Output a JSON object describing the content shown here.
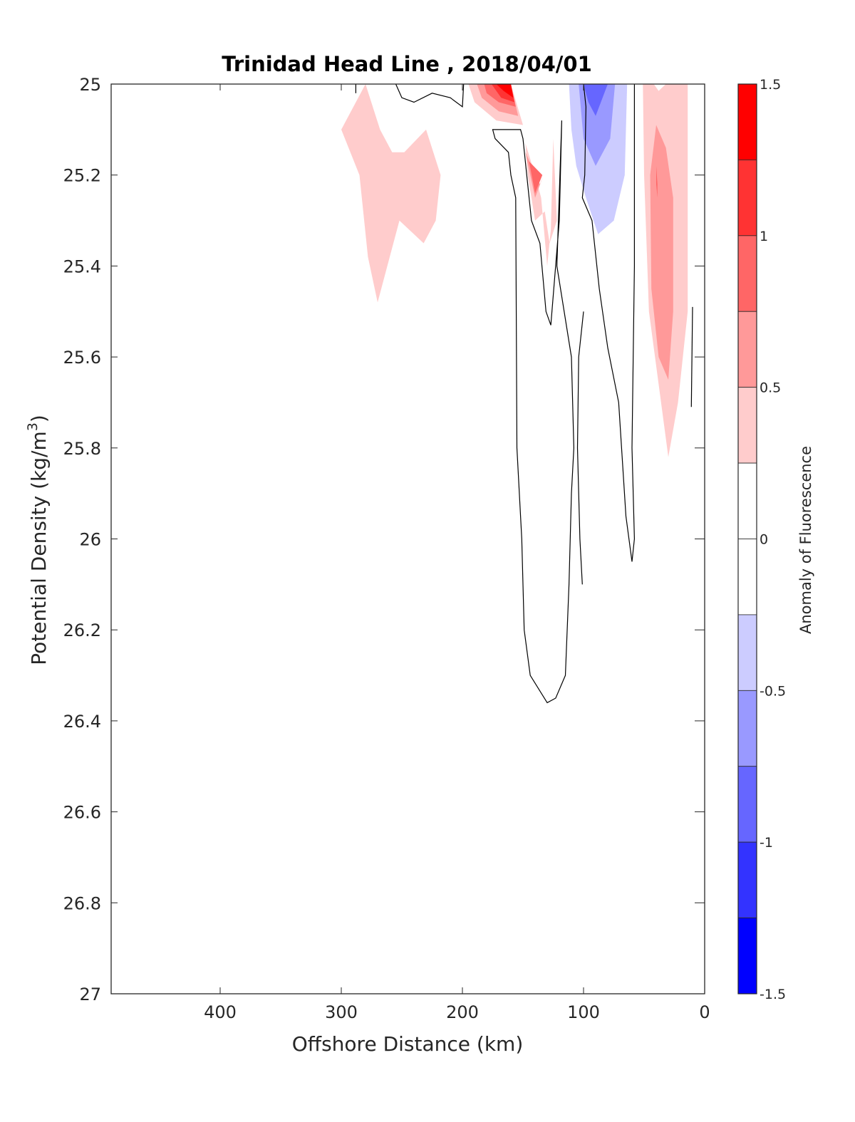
{
  "chart_data": {
    "type": "heatmap",
    "subtype": "filled-contour",
    "title": "Trinidad Head Line , 2018/04/01",
    "xlabel": "Offshore Distance (km)",
    "ylabel": "Potential Density (kg/m",
    "ylabel_superscript": "3",
    "ylabel_suffix": ")",
    "xlim": [
      490,
      0
    ],
    "x_reversed": true,
    "ylim": [
      25,
      27
    ],
    "y_reversed": true,
    "xticks": [
      400,
      300,
      200,
      100,
      0
    ],
    "xtick_labels": [
      "400",
      "300",
      "200",
      "100",
      "0"
    ],
    "yticks": [
      25,
      25.2,
      25.4,
      25.6,
      25.8,
      26,
      26.2,
      26.4,
      26.6,
      26.8,
      27
    ],
    "ytick_labels": [
      "25",
      "25.2",
      "25.4",
      "25.6",
      "25.8",
      "26",
      "26.2",
      "26.4",
      "26.6",
      "26.8",
      "27"
    ],
    "grid": false,
    "colorbar": {
      "label": "Anomaly of Fluorescence",
      "placement": "right",
      "range": [
        -1.5,
        1.5
      ],
      "ticks": [
        1.5,
        1,
        0.5,
        0,
        -0.5,
        -1,
        -1.5
      ],
      "tick_labels": [
        "1.5",
        "1",
        "0.5",
        "0",
        "-0.5",
        "-1",
        "-1.5"
      ],
      "levels": [
        {
          "from": 1.25,
          "to": 1.5,
          "color": "#ff0000"
        },
        {
          "from": 0.75,
          "to": 1.25,
          "color": "#ff3333",
          "split_at": 1.0,
          "colors": [
            "#ff3333",
            "#ff6666"
          ]
        },
        {
          "from": 0.5,
          "to": 0.75,
          "color": "#ff9999"
        },
        {
          "from": 0.25,
          "to": 0.5,
          "color": "#ffcccc"
        },
        {
          "from": -0.25,
          "to": 0.25,
          "color": "#ffffff"
        },
        {
          "from": -0.5,
          "to": -0.25,
          "color": "#ccccff"
        },
        {
          "from": -0.75,
          "to": -0.5,
          "color": "#9999ff"
        },
        {
          "from": -1.0,
          "to": -0.75,
          "color": "#6666ff"
        },
        {
          "from": -1.25,
          "to": -1.0,
          "color": "#3333ff"
        },
        {
          "from": -1.5,
          "to": -1.25,
          "color": "#0000ff"
        }
      ],
      "bands": [
        {
          "color": "#ff0000",
          "from": 1.25,
          "to": 1.5
        },
        {
          "color": "#ff3333",
          "from": 1.0,
          "to": 1.25
        },
        {
          "color": "#ff6666",
          "from": 0.75,
          "to": 1.0
        },
        {
          "color": "#ff9999",
          "from": 0.5,
          "to": 0.75
        },
        {
          "color": "#ffcccc",
          "from": 0.25,
          "to": 0.5
        },
        {
          "color": "#ffffff",
          "from": 0.0,
          "to": 0.25
        },
        {
          "color": "#ffffff",
          "from": -0.25,
          "to": 0.0
        },
        {
          "color": "#ccccff",
          "from": -0.5,
          "to": -0.25
        },
        {
          "color": "#9999ff",
          "from": -0.75,
          "to": -0.5
        },
        {
          "color": "#6666ff",
          "from": -1.0,
          "to": -0.75
        },
        {
          "color": "#3333ff",
          "from": -1.25,
          "to": -1.0
        },
        {
          "color": "#0000ff",
          "from": -1.5,
          "to": -1.25
        }
      ]
    },
    "filled_regions": [
      {
        "name": "anomaly-patch-offshore-pos",
        "level": 0.25,
        "color": "#ffcccc",
        "points": [
          [
            280,
            25
          ],
          [
            268,
            25.1
          ],
          [
            258,
            25.15
          ],
          [
            248,
            25.15
          ],
          [
            230,
            25.1
          ],
          [
            218,
            25.2
          ],
          [
            222,
            25.3
          ],
          [
            232,
            25.35
          ],
          [
            252,
            25.3
          ],
          [
            262,
            25.4
          ],
          [
            270,
            25.48
          ],
          [
            278,
            25.38
          ],
          [
            285,
            25.2
          ],
          [
            300,
            25.1
          ]
        ]
      },
      {
        "name": "anomaly-patch-200km-pos-1",
        "level": 0.25,
        "color": "#ffcccc",
        "points": [
          [
            195,
            25
          ],
          [
            160,
            25
          ],
          [
            150,
            25.09
          ],
          [
            172,
            25.08
          ],
          [
            190,
            25.04
          ]
        ]
      },
      {
        "name": "anomaly-patch-200km-pos-2",
        "level": 0.5,
        "color": "#ff9999",
        "points": [
          [
            188,
            25
          ],
          [
            160,
            25
          ],
          [
            154,
            25.07
          ],
          [
            170,
            25.06
          ],
          [
            184,
            25.03
          ]
        ]
      },
      {
        "name": "anomaly-patch-200km-pos-3",
        "level": 0.75,
        "color": "#ff6666",
        "points": [
          [
            182,
            25
          ],
          [
            160,
            25
          ],
          [
            156,
            25.05
          ],
          [
            170,
            25.04
          ],
          [
            180,
            25.02
          ]
        ]
      },
      {
        "name": "anomaly-patch-200km-pos-4",
        "level": 1.0,
        "color": "#ff3333",
        "points": [
          [
            176,
            25
          ],
          [
            160,
            25
          ],
          [
            157,
            25.04
          ],
          [
            168,
            25.03
          ]
        ]
      },
      {
        "name": "anomaly-patch-200km-pos-5",
        "level": 1.25,
        "color": "#ff0000",
        "points": [
          [
            172,
            25
          ],
          [
            160,
            25
          ],
          [
            158,
            25.03
          ],
          [
            166,
            25.015
          ]
        ]
      },
      {
        "name": "anomaly-patch-140km-pos-1",
        "level": 0.25,
        "color": "#ffcccc",
        "points": [
          [
            148,
            25.13
          ],
          [
            140,
            25.2
          ],
          [
            135,
            25.25
          ],
          [
            130,
            25.4
          ],
          [
            127,
            25.32
          ],
          [
            125,
            25.12
          ],
          [
            122,
            25.3
          ],
          [
            128,
            25.35
          ],
          [
            132,
            25.28
          ],
          [
            140,
            25.3
          ],
          [
            146,
            25.2
          ]
        ]
      },
      {
        "name": "anomaly-patch-140km-pos-2",
        "level": 0.5,
        "color": "#ff9999",
        "points": [
          [
            148,
            25.15
          ],
          [
            140,
            25.25
          ],
          [
            133,
            25.2
          ],
          [
            136,
            25.22
          ]
        ]
      },
      {
        "name": "anomaly-patch-140km-pos-3",
        "level": 0.75,
        "color": "#ff6666",
        "points": [
          [
            145,
            25.17
          ],
          [
            140,
            25.24
          ],
          [
            134,
            25.2
          ]
        ]
      },
      {
        "name": "anomaly-patch-100km-neg-1",
        "level": -0.25,
        "color": "#ccccff",
        "points": [
          [
            112,
            25
          ],
          [
            64,
            25
          ],
          [
            66,
            25.2
          ],
          [
            75,
            25.3
          ],
          [
            88,
            25.33
          ],
          [
            98,
            25.25
          ],
          [
            106,
            25.18
          ],
          [
            110,
            25.1
          ]
        ]
      },
      {
        "name": "anomaly-patch-100km-neg-2",
        "level": -0.5,
        "color": "#9999ff",
        "points": [
          [
            104,
            25
          ],
          [
            74,
            25
          ],
          [
            78,
            25.12
          ],
          [
            90,
            25.18
          ],
          [
            100,
            25.12
          ]
        ]
      },
      {
        "name": "anomaly-patch-100km-neg-3",
        "level": -0.75,
        "color": "#6666ff",
        "points": [
          [
            100,
            25
          ],
          [
            80,
            25
          ],
          [
            90,
            25.07
          ],
          [
            96,
            25.04
          ]
        ]
      },
      {
        "name": "anomaly-patch-coastal-pos-1",
        "level": 0.25,
        "color": "#ffcccc",
        "points": [
          [
            51,
            25
          ],
          [
            42,
            25
          ],
          [
            38,
            25.015
          ],
          [
            32,
            25
          ],
          [
            14,
            25
          ],
          [
            14,
            25.5
          ],
          [
            22,
            25.7
          ],
          [
            30,
            25.82
          ],
          [
            36,
            25.7
          ],
          [
            46,
            25.5
          ],
          [
            50,
            25.2
          ]
        ]
      },
      {
        "name": "anomaly-patch-coastal-pos-2",
        "level": 0.5,
        "color": "#ff9999",
        "points": [
          [
            40,
            25.09
          ],
          [
            45,
            25.2
          ],
          [
            44,
            25.45
          ],
          [
            38,
            25.6
          ],
          [
            30,
            25.65
          ],
          [
            26,
            25.5
          ],
          [
            26,
            25.25
          ],
          [
            32,
            25.14
          ]
        ]
      },
      {
        "name": "anomaly-patch-coastal-pos-3",
        "level": 0.75,
        "color": "#ff6666",
        "points": [
          [
            40,
            25.18
          ],
          [
            39,
            25.22
          ],
          [
            39,
            25.25
          ],
          [
            40,
            25.22
          ]
        ]
      }
    ],
    "zero_contours": [
      {
        "name": "zero-contour-top-wavy",
        "closed": false,
        "points": [
          [
            255,
            25
          ],
          [
            250,
            25.03
          ],
          [
            240,
            25.04
          ],
          [
            225,
            25.02
          ],
          [
            210,
            25.03
          ],
          [
            200,
            25.05
          ],
          [
            199,
            25.0
          ]
        ]
      },
      {
        "name": "zero-contour-top-small",
        "closed": false,
        "points": [
          [
            288,
            25
          ],
          [
            288,
            25.02
          ]
        ]
      },
      {
        "name": "zero-contour-center-tongue",
        "closed": true,
        "points": [
          [
            152,
            25.1
          ],
          [
            175,
            25.1
          ],
          [
            173,
            25.12
          ],
          [
            162,
            25.15
          ],
          [
            160,
            25.2
          ],
          [
            156,
            25.25
          ],
          [
            155,
            25.8
          ],
          [
            151,
            26.0
          ],
          [
            149,
            26.2
          ],
          [
            144,
            26.3
          ],
          [
            130,
            26.36
          ],
          [
            123,
            26.35
          ],
          [
            115,
            26.3
          ],
          [
            112,
            26.1
          ],
          [
            110,
            25.9
          ],
          [
            108,
            25.8
          ],
          [
            110,
            25.6
          ],
          [
            122,
            25.4
          ],
          [
            118,
            25.08
          ],
          [
            120,
            25.3
          ],
          [
            127,
            25.53
          ],
          [
            131,
            25.5
          ],
          [
            136,
            25.35
          ],
          [
            143,
            25.3
          ],
          [
            150,
            25.12
          ]
        ]
      },
      {
        "name": "zero-contour-right-tongue",
        "closed": false,
        "points": [
          [
            58,
            25
          ],
          [
            58,
            25.4
          ],
          [
            60,
            25.8
          ],
          [
            58,
            26.0
          ],
          [
            60,
            26.05
          ],
          [
            65,
            25.95
          ],
          [
            71,
            25.7
          ],
          [
            80,
            25.58
          ],
          [
            87,
            25.45
          ],
          [
            93,
            25.3
          ],
          [
            101,
            25.25
          ],
          [
            99,
            25.2
          ],
          [
            98,
            25.05
          ],
          [
            100,
            25.0
          ]
        ]
      },
      {
        "name": "zero-contour-mid-band",
        "closed": false,
        "points": [
          [
            100,
            25.5
          ],
          [
            104,
            25.6
          ],
          [
            105,
            25.8
          ],
          [
            103,
            26.0
          ],
          [
            101,
            26.1
          ]
        ]
      },
      {
        "name": "zero-contour-coastal-line",
        "closed": false,
        "points": [
          [
            10,
            25.49
          ],
          [
            11,
            25.71
          ]
        ]
      }
    ]
  }
}
